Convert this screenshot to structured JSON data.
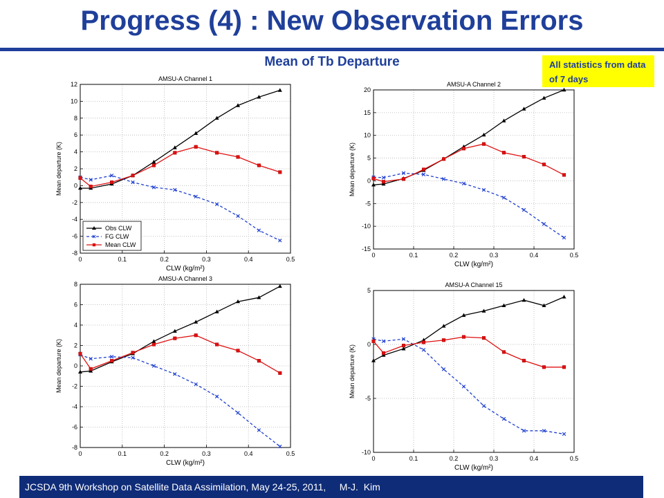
{
  "slide": {
    "title": "Progress (4) : New Observation Errors",
    "subtitle": "Mean of Tb Departure",
    "note": "All statistics from data of 7 days",
    "footer": "JCSDA 9th Workshop on Satellite Data Assimilation, May 24-25, 2011,     M-J.  Kim",
    "colors": {
      "title": "#1f3f9a",
      "footer_bg": "#0f2c78",
      "note_bg": "#ffff00",
      "obs": "#000000",
      "fg": "#1f3fd0",
      "mean": "#e01010"
    }
  },
  "chart_data": [
    {
      "type": "line",
      "title": "AMSU-A Channel 1",
      "xlabel": "CLW (kg/m²)",
      "ylabel": "Mean departure (K)",
      "xlim": [
        0,
        0.5
      ],
      "ylim": [
        -8,
        12
      ],
      "xticks": [
        0,
        0.1,
        0.2,
        0.3,
        0.4,
        0.5
      ],
      "yticks": [
        -8,
        -6,
        -4,
        -2,
        0,
        2,
        4,
        6,
        8,
        10,
        12
      ],
      "grid": true,
      "legend": "bottom-left",
      "x": [
        0.0,
        0.025,
        0.075,
        0.125,
        0.175,
        0.225,
        0.275,
        0.325,
        0.375,
        0.425,
        0.475
      ],
      "series": [
        {
          "name": "Obs CLW",
          "marker": "triangle",
          "values": [
            -0.3,
            -0.3,
            0.2,
            1.2,
            2.8,
            4.5,
            6.2,
            8.0,
            9.5,
            10.5,
            11.3
          ]
        },
        {
          "name": "FG CLW",
          "marker": "x",
          "values": [
            1.0,
            0.7,
            1.2,
            0.4,
            -0.2,
            -0.5,
            -1.3,
            -2.2,
            -3.6,
            -5.3,
            -6.5
          ]
        },
        {
          "name": "Mean CLW",
          "marker": "circle",
          "values": [
            0.9,
            -0.1,
            0.4,
            1.2,
            2.4,
            3.9,
            4.6,
            3.9,
            3.4,
            2.4,
            1.6
          ]
        }
      ]
    },
    {
      "type": "line",
      "title": "AMSU-A Channel 2",
      "xlabel": "CLW (kg/m²)",
      "ylabel": "Mean departure (K)",
      "xlim": [
        0,
        0.5
      ],
      "ylim": [
        -15,
        20
      ],
      "xticks": [
        0,
        0.1,
        0.2,
        0.3,
        0.4,
        0.5
      ],
      "yticks": [
        -15,
        -10,
        -5,
        0,
        5,
        10,
        15,
        20
      ],
      "grid": true,
      "x": [
        0.0,
        0.025,
        0.075,
        0.125,
        0.175,
        0.225,
        0.275,
        0.325,
        0.375,
        0.425,
        0.475
      ],
      "series": [
        {
          "name": "Obs CLW",
          "marker": "triangle",
          "values": [
            -0.9,
            -0.7,
            0.5,
            2.3,
            4.8,
            7.5,
            10.1,
            13.2,
            15.8,
            18.2,
            20.0
          ]
        },
        {
          "name": "FG CLW",
          "marker": "x",
          "values": [
            0.8,
            0.7,
            1.7,
            1.4,
            0.4,
            -0.6,
            -2.0,
            -3.7,
            -6.4,
            -9.5,
            -12.5
          ]
        },
        {
          "name": "Mean CLW",
          "marker": "circle",
          "values": [
            0.5,
            -0.2,
            0.4,
            2.5,
            4.8,
            7.1,
            8.1,
            6.2,
            5.3,
            3.6,
            1.3
          ]
        }
      ]
    },
    {
      "type": "line",
      "title": "AMSU-A Channel 3",
      "xlabel": "CLW (kg/m²)",
      "ylabel": "Mean departure (K)",
      "xlim": [
        0,
        0.5
      ],
      "ylim": [
        -8,
        8
      ],
      "xticks": [
        0,
        0.1,
        0.2,
        0.3,
        0.4,
        0.5
      ],
      "yticks": [
        -8,
        -6,
        -4,
        -2,
        0,
        2,
        4,
        6,
        8
      ],
      "grid": true,
      "x": [
        0.0,
        0.025,
        0.075,
        0.125,
        0.175,
        0.225,
        0.275,
        0.325,
        0.375,
        0.425,
        0.475
      ],
      "series": [
        {
          "name": "Obs CLW",
          "marker": "triangle",
          "values": [
            -0.6,
            -0.5,
            0.4,
            1.2,
            2.4,
            3.4,
            4.3,
            5.3,
            6.3,
            6.7,
            7.8
          ]
        },
        {
          "name": "FG CLW",
          "marker": "x",
          "values": [
            1.1,
            0.7,
            0.9,
            0.8,
            0.0,
            -0.8,
            -1.8,
            -3.0,
            -4.6,
            -6.3,
            -7.9
          ]
        },
        {
          "name": "Mean CLW",
          "marker": "circle",
          "values": [
            1.2,
            -0.3,
            0.5,
            1.3,
            2.1,
            2.7,
            3.0,
            2.1,
            1.5,
            0.5,
            -0.7
          ]
        }
      ]
    },
    {
      "type": "line",
      "title": "AMSU-A Channel 15",
      "xlabel": "CLW (kg/m²)",
      "ylabel": "Mean departure (K)",
      "xlim": [
        0,
        0.5
      ],
      "ylim": [
        -10,
        5
      ],
      "xticks": [
        0,
        0.1,
        0.2,
        0.3,
        0.4,
        0.5
      ],
      "yticks": [
        -10,
        -5,
        0,
        5
      ],
      "grid": true,
      "x": [
        0.0,
        0.025,
        0.075,
        0.125,
        0.175,
        0.225,
        0.275,
        0.325,
        0.375,
        0.425,
        0.475
      ],
      "series": [
        {
          "name": "Obs CLW",
          "marker": "triangle",
          "values": [
            -1.5,
            -1.0,
            -0.4,
            0.4,
            1.7,
            2.7,
            3.1,
            3.6,
            4.1,
            3.6,
            4.4
          ]
        },
        {
          "name": "FG CLW",
          "marker": "x",
          "values": [
            0.5,
            0.3,
            0.5,
            -0.5,
            -2.3,
            -3.9,
            -5.7,
            -6.9,
            -8.0,
            -8.0,
            -8.3
          ]
        },
        {
          "name": "Mean CLW",
          "marker": "circle",
          "values": [
            0.3,
            -0.8,
            -0.1,
            0.2,
            0.4,
            0.7,
            0.6,
            -0.7,
            -1.5,
            -2.1,
            -2.1
          ]
        }
      ]
    }
  ]
}
